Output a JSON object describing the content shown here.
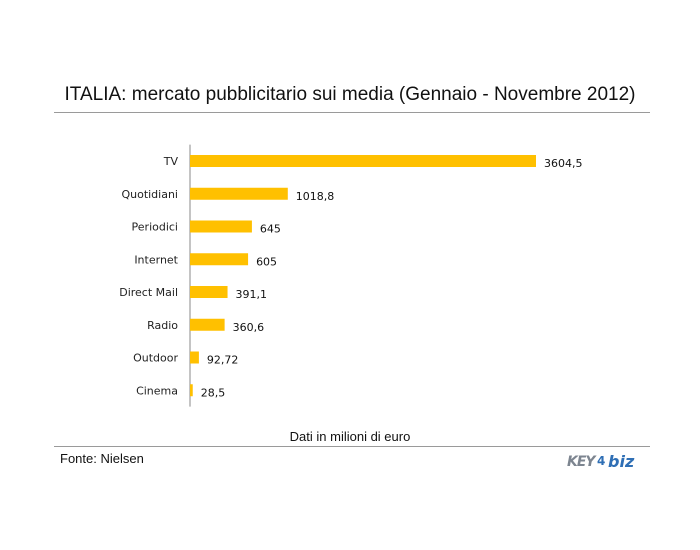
{
  "chart_data": {
    "type": "bar",
    "orientation": "horizontal",
    "title": "ITALIA: mercato pubblicitario sui media (Gennaio - Novembre 2012)",
    "xlabel": "Dati in milioni di euro",
    "ylabel": "",
    "categories": [
      "TV",
      "Quotidiani",
      "Periodici",
      "Internet",
      "Direct Mail",
      "Radio",
      "Outdoor",
      "Cinema"
    ],
    "values": [
      3604.5,
      1018.8,
      645,
      605,
      391.1,
      360.6,
      92.72,
      28.5
    ],
    "value_labels": [
      "3604,5",
      "1018,8",
      "645",
      "605",
      "391,1",
      "360,6",
      "92,72",
      "28,5"
    ],
    "xlim": [
      0,
      3604.5
    ],
    "bar_color": "#FFC000",
    "grid": false,
    "legend": "none"
  },
  "footer": {
    "source": "Fonte: Nielsen",
    "logo_text": "KEY4biz"
  },
  "colors": {
    "logo_blue": "#2f6fb5",
    "logo_gray": "#7d8590",
    "rule": "#9a9a9a"
  }
}
